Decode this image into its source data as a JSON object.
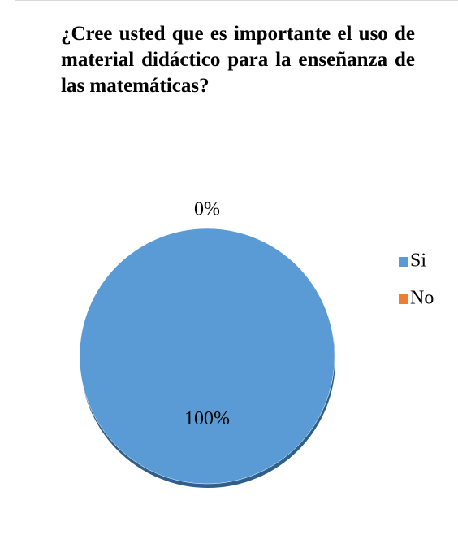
{
  "chart_data": {
    "type": "pie",
    "title": "¿Cree usted que es importante el uso de material didáctico para la enseñanza de las matemáticas?",
    "categories": [
      "Si",
      "No"
    ],
    "values": [
      100,
      0
    ],
    "value_labels": [
      "100%",
      "0%"
    ],
    "colors": [
      "#5b9bd5",
      "#ed7d31"
    ],
    "legend": "right"
  }
}
